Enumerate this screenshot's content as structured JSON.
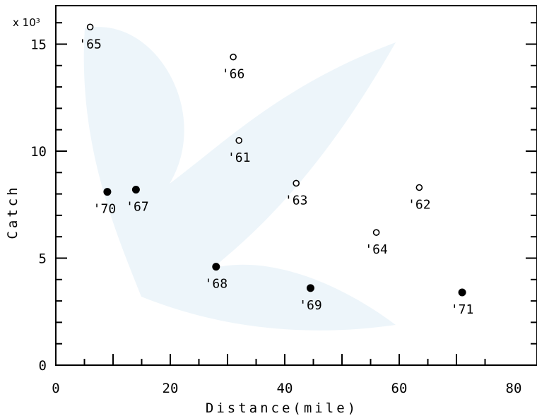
{
  "chart_data": {
    "type": "scatter",
    "xlabel": "Distance(mile)",
    "ylabel": "Catch",
    "y_scale_note": "x 10³",
    "xlim": [
      0,
      80
    ],
    "ylim": [
      0,
      16
    ],
    "x_ticks": [
      "0",
      "20",
      "40",
      "60",
      "80"
    ],
    "y_ticks": [
      "0",
      "5",
      "10",
      "15"
    ],
    "grid": false,
    "legend": "none",
    "series": [
      {
        "marker": "open-circle",
        "points": [
          {
            "label": "'61",
            "x": 32,
            "y": 10.5
          },
          {
            "label": "'62",
            "x": 63.5,
            "y": 8.3
          },
          {
            "label": "'63",
            "x": 42,
            "y": 8.5
          },
          {
            "label": "'64",
            "x": 56,
            "y": 6.2
          },
          {
            "label": "'65",
            "x": 6,
            "y": 15.8
          },
          {
            "label": "'66",
            "x": 31,
            "y": 14.4
          }
        ]
      },
      {
        "marker": "filled-circle",
        "points": [
          {
            "label": "'67",
            "x": 14,
            "y": 8.2
          },
          {
            "label": "'68",
            "x": 28,
            "y": 4.6
          },
          {
            "label": "'69",
            "x": 44.5,
            "y": 3.6
          },
          {
            "label": "'70",
            "x": 9,
            "y": 8.1
          },
          {
            "label": "'71",
            "x": 71,
            "y": 3.4
          }
        ]
      }
    ]
  }
}
